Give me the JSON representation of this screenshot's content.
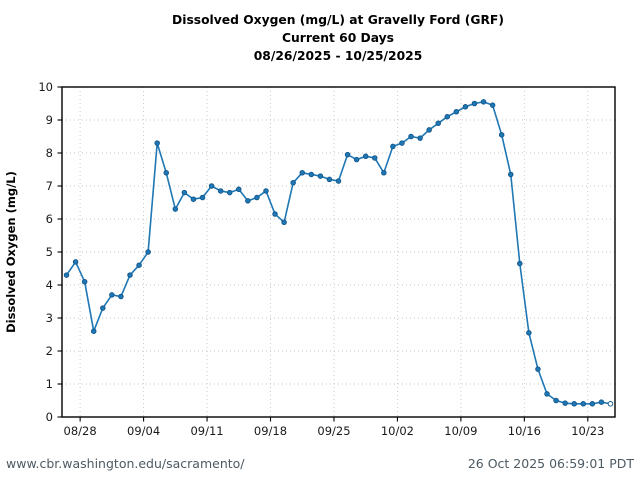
{
  "page": {
    "title_line1": "Dissolved Oxygen (mg/L) at Gravelly Ford (GRF)",
    "title_line2": "Current 60 Days",
    "title_line3": "08/26/2025 - 10/25/2025",
    "footer_url": "www.cbr.washington.edu/sacramento/",
    "footer_timestamp": "26 Oct 2025 06:59:01 PDT"
  },
  "colors": {
    "line": "#1f77b4",
    "marker_face": "#1f77b4",
    "marker_edge": "#11568c",
    "open_marker_face": "#ffffff",
    "grid": "#c6c6c6",
    "axis": "#000000",
    "text": "#1a1a1a",
    "footer_url": "#4d5a63",
    "footer_timestamp": "#4d5a63"
  },
  "chart_data": {
    "type": "line",
    "title": "Dissolved Oxygen (mg/L) at Gravelly Ford (GRF)",
    "subtitle": "Current 60 Days",
    "date_range": "08/26/2025 - 10/25/2025",
    "xlabel": "",
    "ylabel": "Dissolved Oxygen (mg/L)",
    "ylim": [
      0,
      10
    ],
    "yticks": [
      0,
      1,
      2,
      3,
      4,
      5,
      6,
      7,
      8,
      9,
      10
    ],
    "xtick_labels": [
      "08/28",
      "09/04",
      "09/11",
      "09/18",
      "09/25",
      "10/02",
      "10/09",
      "10/16",
      "10/23"
    ],
    "xtick_day_index": [
      2,
      9,
      16,
      23,
      30,
      37,
      44,
      51,
      58
    ],
    "x_days_total": 61,
    "grid": true,
    "legend_position": "none",
    "last_point_open": true,
    "series": [
      {
        "name": "Dissolved Oxygen (mg/L)",
        "dates": [
          "08/26",
          "08/27",
          "08/28",
          "08/29",
          "08/30",
          "08/31",
          "09/01",
          "09/02",
          "09/03",
          "09/04",
          "09/05",
          "09/06",
          "09/07",
          "09/08",
          "09/09",
          "09/10",
          "09/11",
          "09/12",
          "09/13",
          "09/14",
          "09/15",
          "09/16",
          "09/17",
          "09/18",
          "09/19",
          "09/20",
          "09/21",
          "09/22",
          "09/23",
          "09/24",
          "09/25",
          "09/26",
          "09/27",
          "09/28",
          "09/29",
          "09/30",
          "10/01",
          "10/02",
          "10/03",
          "10/04",
          "10/05",
          "10/06",
          "10/07",
          "10/08",
          "10/09",
          "10/10",
          "10/11",
          "10/12",
          "10/13",
          "10/14",
          "10/15",
          "10/16",
          "10/17",
          "10/18",
          "10/19",
          "10/20",
          "10/21",
          "10/22",
          "10/23",
          "10/24",
          "10/25"
        ],
        "values": [
          4.3,
          4.7,
          4.1,
          2.6,
          3.3,
          3.7,
          3.65,
          4.3,
          4.6,
          5.0,
          8.3,
          7.4,
          6.3,
          6.8,
          6.6,
          6.65,
          7.0,
          6.85,
          6.8,
          6.9,
          6.55,
          6.65,
          6.85,
          6.15,
          5.9,
          7.1,
          7.4,
          7.35,
          7.3,
          7.2,
          7.15,
          7.95,
          7.8,
          7.9,
          7.85,
          7.4,
          8.2,
          8.3,
          8.5,
          8.45,
          8.7,
          8.9,
          9.1,
          9.25,
          9.4,
          9.5,
          9.55,
          9.45,
          8.55,
          7.35,
          4.65,
          2.55,
          1.45,
          0.7,
          0.5,
          0.42,
          0.4,
          0.4,
          0.4,
          0.45,
          0.4
        ]
      }
    ]
  }
}
